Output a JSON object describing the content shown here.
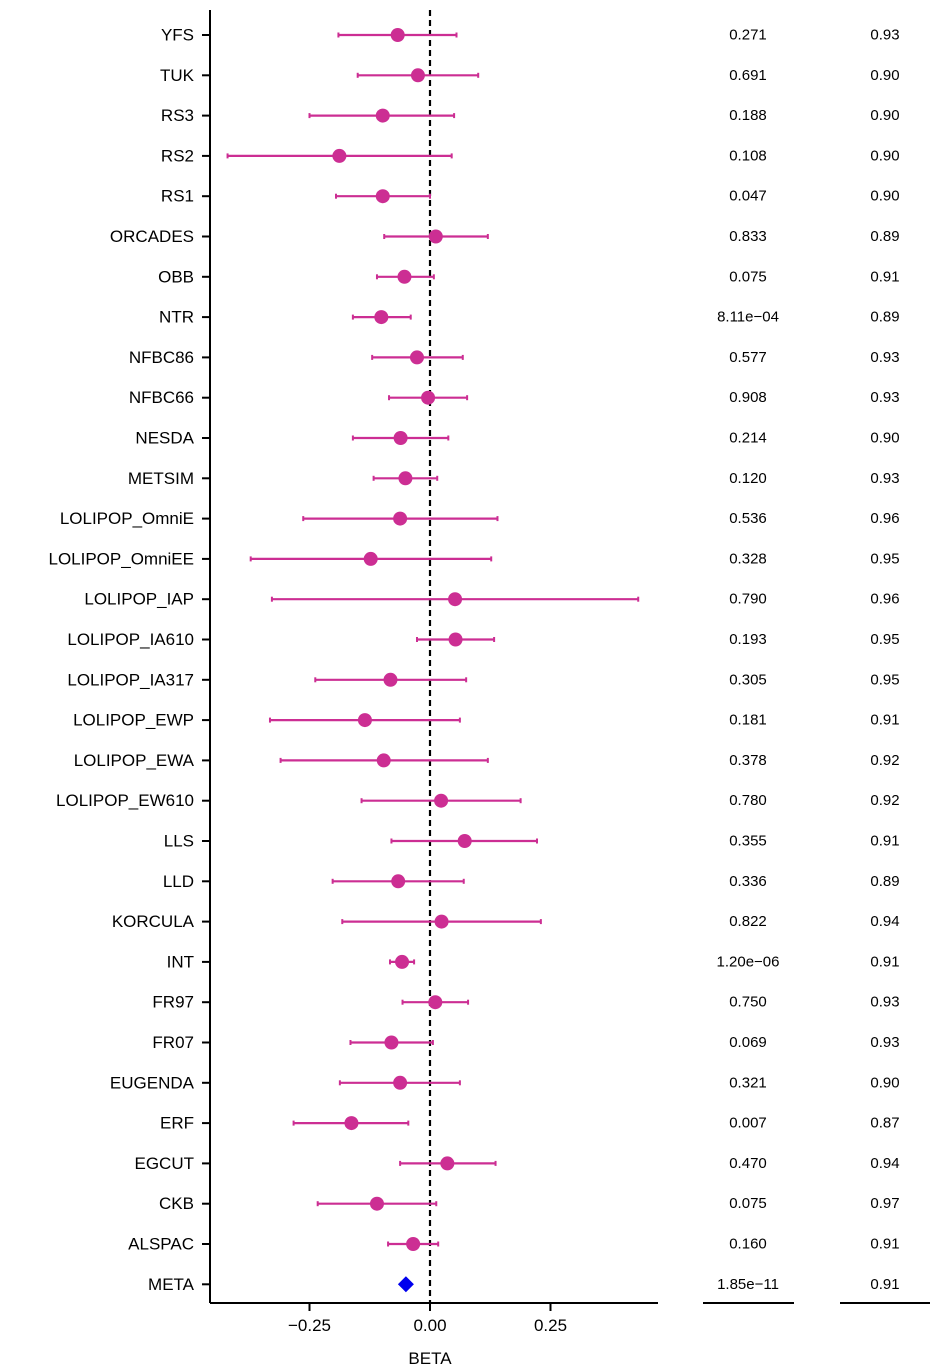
{
  "chart_data": {
    "type": "forest",
    "xlabel": "BETA",
    "xlim": [
      -0.45,
      0.47
    ],
    "xticks": [
      -0.25,
      0.0,
      0.25
    ],
    "xtick_labels": [
      "−0.25",
      "0.00",
      "0.25"
    ],
    "reference_line": 0,
    "colors": {
      "study": "#cc2e93",
      "meta": "#0000ee"
    },
    "rows": [
      {
        "study": "YFS",
        "beta": -0.067,
        "lo": -0.19,
        "hi": 0.055,
        "p": "0.271",
        "r": "0.93"
      },
      {
        "study": "TUK",
        "beta": -0.025,
        "lo": -0.15,
        "hi": 0.1,
        "p": "0.691",
        "r": "0.90"
      },
      {
        "study": "RS3",
        "beta": -0.098,
        "lo": -0.25,
        "hi": 0.05,
        "p": "0.188",
        "r": "0.90"
      },
      {
        "study": "RS2",
        "beta": -0.188,
        "lo": -0.42,
        "hi": 0.045,
        "p": "0.108",
        "r": "0.90"
      },
      {
        "study": "RS1",
        "beta": -0.098,
        "lo": -0.195,
        "hi": 0.0,
        "p": "0.047",
        "r": "0.90"
      },
      {
        "study": "ORCADES",
        "beta": 0.012,
        "lo": -0.095,
        "hi": 0.12,
        "p": "0.833",
        "r": "0.89"
      },
      {
        "study": "OBB",
        "beta": -0.053,
        "lo": -0.11,
        "hi": 0.008,
        "p": "0.075",
        "r": "0.91"
      },
      {
        "study": "NTR",
        "beta": -0.101,
        "lo": -0.16,
        "hi": -0.04,
        "p": "8.11e−04",
        "r": "0.89"
      },
      {
        "study": "NFBC86",
        "beta": -0.027,
        "lo": -0.12,
        "hi": 0.068,
        "p": "0.577",
        "r": "0.93"
      },
      {
        "study": "NFBC66",
        "beta": -0.004,
        "lo": -0.085,
        "hi": 0.077,
        "p": "0.908",
        "r": "0.93"
      },
      {
        "study": "NESDA",
        "beta": -0.061,
        "lo": -0.16,
        "hi": 0.038,
        "p": "0.214",
        "r": "0.90"
      },
      {
        "study": "METSIM",
        "beta": -0.051,
        "lo": -0.117,
        "hi": 0.015,
        "p": "0.120",
        "r": "0.93"
      },
      {
        "study": "LOLIPOP_OmniE",
        "beta": -0.062,
        "lo": -0.263,
        "hi": 0.14,
        "p": "0.536",
        "r": "0.96"
      },
      {
        "study": "LOLIPOP_OmniEE",
        "beta": -0.123,
        "lo": -0.372,
        "hi": 0.127,
        "p": "0.328",
        "r": "0.95"
      },
      {
        "study": "LOLIPOP_IAP",
        "beta": 0.052,
        "lo": -0.328,
        "hi": 0.432,
        "p": "0.790",
        "r": "0.96"
      },
      {
        "study": "LOLIPOP_IA610",
        "beta": 0.053,
        "lo": -0.027,
        "hi": 0.133,
        "p": "0.193",
        "r": "0.95"
      },
      {
        "study": "LOLIPOP_IA317",
        "beta": -0.082,
        "lo": -0.238,
        "hi": 0.075,
        "p": "0.305",
        "r": "0.95"
      },
      {
        "study": "LOLIPOP_EWP",
        "beta": -0.135,
        "lo": -0.332,
        "hi": 0.062,
        "p": "0.181",
        "r": "0.91"
      },
      {
        "study": "LOLIPOP_EWA",
        "beta": -0.096,
        "lo": -0.31,
        "hi": 0.12,
        "p": "0.378",
        "r": "0.92"
      },
      {
        "study": "LOLIPOP_EW610",
        "beta": 0.023,
        "lo": -0.142,
        "hi": 0.188,
        "p": "0.780",
        "r": "0.92"
      },
      {
        "study": "LLS",
        "beta": 0.072,
        "lo": -0.08,
        "hi": 0.222,
        "p": "0.355",
        "r": "0.91"
      },
      {
        "study": "LLD",
        "beta": -0.066,
        "lo": -0.202,
        "hi": 0.07,
        "p": "0.336",
        "r": "0.89"
      },
      {
        "study": "KORCULA",
        "beta": 0.024,
        "lo": -0.182,
        "hi": 0.23,
        "p": "0.822",
        "r": "0.94"
      },
      {
        "study": "INT",
        "beta": -0.058,
        "lo": -0.083,
        "hi": -0.033,
        "p": "1.20e−06",
        "r": "0.91"
      },
      {
        "study": "FR97",
        "beta": 0.011,
        "lo": -0.057,
        "hi": 0.079,
        "p": "0.750",
        "r": "0.93"
      },
      {
        "study": "FR07",
        "beta": -0.08,
        "lo": -0.165,
        "hi": 0.006,
        "p": "0.069",
        "r": "0.93"
      },
      {
        "study": "EUGENDA",
        "beta": -0.062,
        "lo": -0.187,
        "hi": 0.062,
        "p": "0.321",
        "r": "0.90"
      },
      {
        "study": "ERF",
        "beta": -0.163,
        "lo": -0.283,
        "hi": -0.045,
        "p": "0.007",
        "r": "0.87"
      },
      {
        "study": "EGCUT",
        "beta": 0.036,
        "lo": -0.062,
        "hi": 0.136,
        "p": "0.470",
        "r": "0.94"
      },
      {
        "study": "CKB",
        "beta": -0.11,
        "lo": -0.233,
        "hi": 0.013,
        "p": "0.075",
        "r": "0.97"
      },
      {
        "study": "ALSPAC",
        "beta": -0.035,
        "lo": -0.087,
        "hi": 0.017,
        "p": "0.160",
        "r": "0.91"
      },
      {
        "study": "META",
        "beta": -0.05,
        "lo": null,
        "hi": null,
        "p": "1.85e−11",
        "r": "0.91",
        "meta": true
      }
    ]
  }
}
